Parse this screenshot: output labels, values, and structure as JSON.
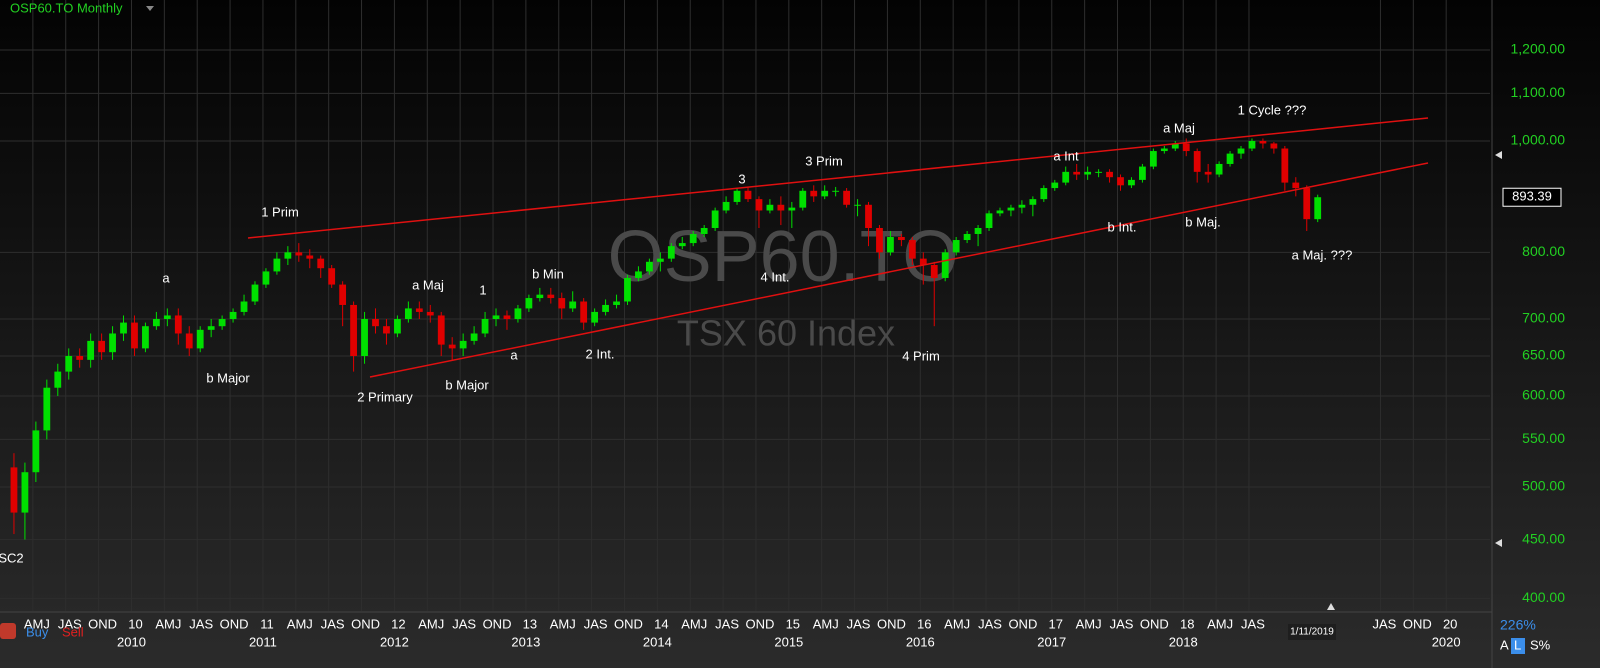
{
  "chart_data": {
    "type": "candlestick",
    "title": "OSP60.TO Monthly",
    "watermark": "OSP60.TO",
    "watermark_subtitle": "TSX 60 Index",
    "log_scale": true,
    "grid": true,
    "colors": {
      "up": "#00e000",
      "down": "#e00000",
      "axis_labels": "#22d022",
      "trendlines": "#e01010"
    },
    "x": [
      "2009-02",
      "2009-03",
      "2009-04",
      "2009-05",
      "2009-06",
      "2009-07",
      "2009-08",
      "2009-09",
      "2009-10",
      "2009-11",
      "2009-12",
      "2010-01",
      "2010-02",
      "2010-03",
      "2010-04",
      "2010-05",
      "2010-06",
      "2010-07",
      "2010-08",
      "2010-09",
      "2010-10",
      "2010-11",
      "2010-12",
      "2011-01",
      "2011-02",
      "2011-03",
      "2011-04",
      "2011-05",
      "2011-06",
      "2011-07",
      "2011-08",
      "2011-09",
      "2011-10",
      "2011-11",
      "2011-12",
      "2012-01",
      "2012-02",
      "2012-03",
      "2012-04",
      "2012-05",
      "2012-06",
      "2012-07",
      "2012-08",
      "2012-09",
      "2012-10",
      "2012-11",
      "2012-12",
      "2013-01",
      "2013-02",
      "2013-03",
      "2013-04",
      "2013-05",
      "2013-06",
      "2013-07",
      "2013-08",
      "2013-09",
      "2013-10",
      "2013-11",
      "2013-12",
      "2014-01",
      "2014-02",
      "2014-03",
      "2014-04",
      "2014-05",
      "2014-06",
      "2014-07",
      "2014-08",
      "2014-09",
      "2014-10",
      "2014-11",
      "2014-12",
      "2015-01",
      "2015-02",
      "2015-03",
      "2015-04",
      "2015-05",
      "2015-06",
      "2015-07",
      "2015-08",
      "2015-09",
      "2015-10",
      "2015-11",
      "2015-12",
      "2016-01",
      "2016-02",
      "2016-03",
      "2016-04",
      "2016-05",
      "2016-06",
      "2016-07",
      "2016-08",
      "2016-09",
      "2016-10",
      "2016-11",
      "2016-12",
      "2017-01",
      "2017-02",
      "2017-03",
      "2017-04",
      "2017-05",
      "2017-06",
      "2017-07",
      "2017-08",
      "2017-09",
      "2017-10",
      "2017-11",
      "2017-12",
      "2018-01",
      "2018-02",
      "2018-03",
      "2018-04",
      "2018-05",
      "2018-06",
      "2018-07",
      "2018-08",
      "2018-09",
      "2018-10",
      "2018-11",
      "2018-12",
      "2019-01"
    ],
    "open": [
      520,
      475,
      515,
      560,
      610,
      630,
      650,
      645,
      670,
      655,
      680,
      695,
      660,
      690,
      700,
      705,
      680,
      660,
      685,
      690,
      700,
      710,
      725,
      750,
      770,
      790,
      800,
      795,
      790,
      775,
      750,
      720,
      650,
      700,
      690,
      680,
      700,
      715,
      710,
      705,
      665,
      660,
      670,
      680,
      700,
      705,
      700,
      715,
      730,
      735,
      730,
      715,
      725,
      695,
      710,
      720,
      725,
      760,
      770,
      785,
      790,
      810,
      815,
      830,
      840,
      870,
      885,
      905,
      890,
      870,
      880,
      870,
      875,
      905,
      895,
      905,
      905,
      880,
      880,
      840,
      800,
      825,
      820,
      790,
      780,
      760,
      800,
      820,
      830,
      840,
      865,
      870,
      875,
      880,
      890,
      910,
      920,
      940,
      935,
      940,
      940,
      930,
      915,
      925,
      950,
      980,
      985,
      995,
      980,
      940,
      935,
      955,
      975,
      985,
      1000,
      995,
      985,
      920,
      910,
      855
    ],
    "high": [
      535,
      525,
      570,
      620,
      640,
      660,
      660,
      680,
      680,
      690,
      705,
      705,
      695,
      710,
      715,
      715,
      690,
      690,
      700,
      705,
      715,
      735,
      755,
      775,
      800,
      810,
      815,
      805,
      795,
      780,
      755,
      725,
      710,
      715,
      700,
      705,
      725,
      725,
      720,
      710,
      675,
      680,
      690,
      710,
      715,
      712,
      720,
      735,
      745,
      745,
      738,
      740,
      730,
      715,
      728,
      735,
      765,
      778,
      790,
      800,
      815,
      825,
      835,
      845,
      875,
      895,
      910,
      912,
      895,
      890,
      895,
      885,
      910,
      915,
      915,
      912,
      910,
      890,
      885,
      845,
      835,
      830,
      825,
      800,
      785,
      805,
      825,
      835,
      845,
      870,
      875,
      880,
      888,
      895,
      915,
      925,
      950,
      955,
      950,
      945,
      945,
      935,
      930,
      955,
      985,
      990,
      1000,
      1005,
      985,
      955,
      960,
      980,
      990,
      1005,
      1005,
      998,
      990,
      930,
      915,
      898
    ],
    "low": [
      455,
      450,
      505,
      550,
      600,
      620,
      635,
      635,
      645,
      645,
      670,
      650,
      655,
      685,
      690,
      665,
      650,
      655,
      675,
      685,
      695,
      705,
      720,
      745,
      765,
      780,
      785,
      775,
      760,
      745,
      690,
      630,
      640,
      680,
      665,
      675,
      695,
      700,
      695,
      650,
      645,
      650,
      665,
      675,
      690,
      685,
      695,
      710,
      725,
      722,
      700,
      710,
      685,
      690,
      705,
      715,
      720,
      755,
      765,
      770,
      785,
      805,
      810,
      825,
      835,
      865,
      880,
      885,
      840,
      865,
      845,
      840,
      870,
      885,
      890,
      895,
      875,
      860,
      810,
      790,
      795,
      810,
      780,
      750,
      690,
      755,
      795,
      815,
      810,
      835,
      860,
      860,
      865,
      860,
      885,
      905,
      915,
      925,
      925,
      930,
      920,
      905,
      910,
      920,
      945,
      975,
      980,
      970,
      920,
      920,
      930,
      950,
      965,
      980,
      985,
      975,
      905,
      895,
      835,
      850
    ],
    "close": [
      475,
      515,
      560,
      610,
      630,
      650,
      645,
      670,
      655,
      680,
      695,
      660,
      690,
      700,
      705,
      680,
      660,
      685,
      690,
      700,
      710,
      725,
      750,
      770,
      790,
      800,
      795,
      790,
      775,
      750,
      720,
      650,
      700,
      690,
      680,
      700,
      715,
      710,
      705,
      665,
      660,
      670,
      680,
      700,
      705,
      700,
      715,
      730,
      735,
      730,
      715,
      725,
      695,
      710,
      720,
      725,
      760,
      770,
      785,
      790,
      810,
      815,
      830,
      840,
      870,
      885,
      905,
      890,
      870,
      880,
      870,
      875,
      905,
      895,
      905,
      905,
      880,
      880,
      840,
      800,
      825,
      820,
      790,
      780,
      760,
      800,
      820,
      830,
      840,
      865,
      870,
      875,
      880,
      890,
      910,
      920,
      940,
      935,
      940,
      940,
      930,
      915,
      925,
      950,
      980,
      985,
      995,
      980,
      940,
      935,
      955,
      975,
      985,
      1000,
      995,
      985,
      920,
      910,
      855,
      893.39
    ],
    "xlim": [
      "2009-01",
      "2020-05"
    ],
    "ylim": [
      390,
      1300
    ],
    "yticks": [
      {
        "value": 400,
        "label": "400.00"
      },
      {
        "value": 450,
        "label": "450.00"
      },
      {
        "value": 500,
        "label": "500.00"
      },
      {
        "value": 550,
        "label": "550.00"
      },
      {
        "value": 600,
        "label": "600.00"
      },
      {
        "value": 650,
        "label": "650.00"
      },
      {
        "value": 700,
        "label": "700.00"
      },
      {
        "value": 800,
        "label": "800.00"
      },
      {
        "value": 1000,
        "label": "1,000.00"
      },
      {
        "value": 1100,
        "label": "1,100.00"
      },
      {
        "value": 1200,
        "label": "1,200.00"
      }
    ],
    "xticks": [
      {
        "value": "2009-04",
        "label": "AMJ"
      },
      {
        "value": "2009-07",
        "label": "JAS"
      },
      {
        "value": "2009-10",
        "label": "OND"
      },
      {
        "value": "2010-01",
        "label": "10"
      },
      {
        "value": "2010-04",
        "label": "AMJ"
      },
      {
        "value": "2010-07",
        "label": "JAS"
      },
      {
        "value": "2010-10",
        "label": "OND"
      },
      {
        "value": "2011-01",
        "label": "11"
      },
      {
        "value": "2011-04",
        "label": "AMJ"
      },
      {
        "value": "2011-07",
        "label": "JAS"
      },
      {
        "value": "2011-10",
        "label": "OND"
      },
      {
        "value": "2012-01",
        "label": "12"
      },
      {
        "value": "2012-04",
        "label": "AMJ"
      },
      {
        "value": "2012-07",
        "label": "JAS"
      },
      {
        "value": "2012-10",
        "label": "OND"
      },
      {
        "value": "2013-01",
        "label": "13"
      },
      {
        "value": "2013-04",
        "label": "AMJ"
      },
      {
        "value": "2013-07",
        "label": "JAS"
      },
      {
        "value": "2013-10",
        "label": "OND"
      },
      {
        "value": "2014-01",
        "label": "14"
      },
      {
        "value": "2014-04",
        "label": "AMJ"
      },
      {
        "value": "2014-07",
        "label": "JAS"
      },
      {
        "value": "2014-10",
        "label": "OND"
      },
      {
        "value": "2015-01",
        "label": "15"
      },
      {
        "value": "2015-04",
        "label": "AMJ"
      },
      {
        "value": "2015-07",
        "label": "JAS"
      },
      {
        "value": "2015-10",
        "label": "OND"
      },
      {
        "value": "2016-01",
        "label": "16"
      },
      {
        "value": "2016-04",
        "label": "AMJ"
      },
      {
        "value": "2016-07",
        "label": "JAS"
      },
      {
        "value": "2016-10",
        "label": "OND"
      },
      {
        "value": "2017-01",
        "label": "17"
      },
      {
        "value": "2017-04",
        "label": "AMJ"
      },
      {
        "value": "2017-07",
        "label": "JAS"
      },
      {
        "value": "2017-10",
        "label": "OND"
      },
      {
        "value": "2018-01",
        "label": "18"
      },
      {
        "value": "2018-04",
        "label": "AMJ"
      },
      {
        "value": "2018-07",
        "label": "JAS"
      },
      {
        "value": "2019-07",
        "label": "JAS"
      },
      {
        "value": "2019-10",
        "label": "OND"
      },
      {
        "value": "2020-01",
        "label": "20"
      }
    ],
    "xticks_years": [
      {
        "value": "2010-01",
        "label": "2010"
      },
      {
        "value": "2011-01",
        "label": "2011"
      },
      {
        "value": "2012-01",
        "label": "2012"
      },
      {
        "value": "2013-01",
        "label": "2013"
      },
      {
        "value": "2014-01",
        "label": "2014"
      },
      {
        "value": "2015-01",
        "label": "2015"
      },
      {
        "value": "2016-01",
        "label": "2016"
      },
      {
        "value": "2017-01",
        "label": "2017"
      },
      {
        "value": "2018-01",
        "label": "2018"
      },
      {
        "value": "2020-01",
        "label": "2020"
      }
    ],
    "annotations": [
      "SC2",
      "a",
      "b Major",
      "1 Prim",
      "2 Primary",
      "a Maj",
      "b Major",
      "1",
      "a",
      "b Min",
      "2 Int.",
      "3",
      "3 Prim",
      "4 Int.",
      "4 Prim",
      "a Int",
      "b Int.",
      "a Maj",
      "b Maj.",
      "1 Cycle ???",
      "a Maj. ???"
    ],
    "cursor_date": "1/11/2019",
    "buttons": [
      "Buy",
      "Sell"
    ],
    "status": [
      "226%",
      "A",
      "L",
      "S%"
    ]
  }
}
